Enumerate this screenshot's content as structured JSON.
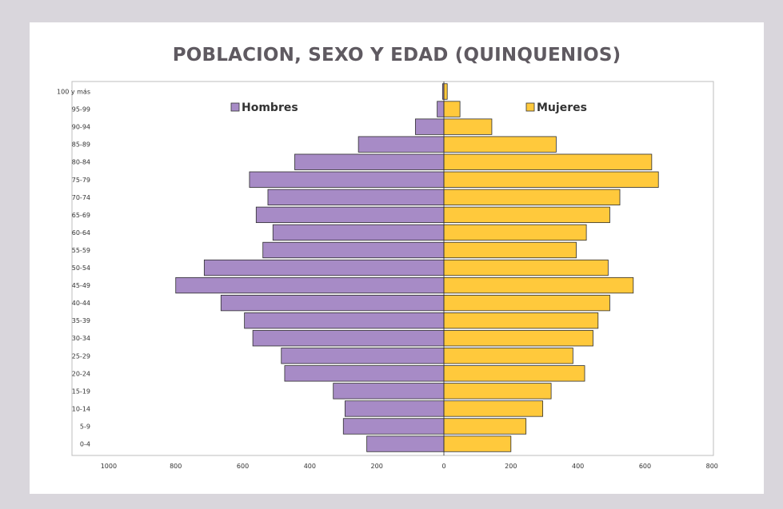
{
  "chart_data": {
    "type": "bar",
    "title": "POBLACION, SEXO Y EDAD (QUINQUENIOS)",
    "xlabel": "",
    "ylabel": "",
    "xlim": [
      -1000,
      800
    ],
    "x_ticks": [
      {
        "value": -1000,
        "label": "1000"
      },
      {
        "value": -800,
        "label": "800"
      },
      {
        "value": -600,
        "label": "600"
      },
      {
        "value": -400,
        "label": "400"
      },
      {
        "value": -200,
        "label": "200"
      },
      {
        "value": 0,
        "label": "0"
      },
      {
        "value": 200,
        "label": "200"
      },
      {
        "value": 400,
        "label": "400"
      },
      {
        "value": 600,
        "label": "600"
      },
      {
        "value": 800,
        "label": "800"
      }
    ],
    "categories": [
      "100 y más",
      "95-99",
      "90-94",
      "85-89",
      "80-84",
      "75-79",
      "70-74",
      "65-69",
      "60-64",
      "55-59",
      "50-54",
      "45-49",
      "40-44",
      "35-39",
      "30-34",
      "25-29",
      "20-24",
      "15-19",
      "10-14",
      "5-9",
      "0-4"
    ],
    "series": [
      {
        "name": "Hombres",
        "color": "#a78bc6",
        "values": [
          4,
          20,
          85,
          255,
          445,
          580,
          525,
          560,
          510,
          540,
          715,
          800,
          665,
          595,
          570,
          485,
          475,
          330,
          295,
          300,
          230
        ]
      },
      {
        "name": "Mujeres",
        "color": "#ffc93c",
        "values": [
          10,
          48,
          143,
          335,
          620,
          640,
          525,
          495,
          425,
          395,
          490,
          565,
          495,
          460,
          445,
          385,
          420,
          320,
          295,
          245,
          200
        ]
      }
    ],
    "legend_placement": "top"
  }
}
